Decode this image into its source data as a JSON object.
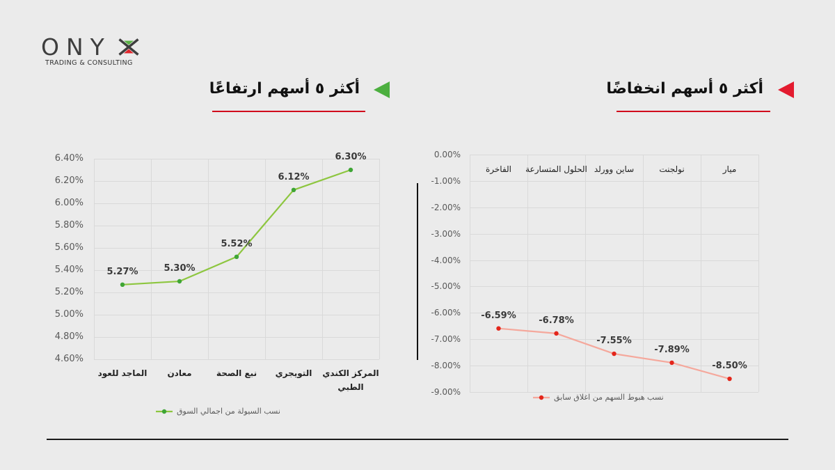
{
  "logo": {
    "name": "ONYX",
    "tagline": "TRADING & CONSULTING",
    "colors": {
      "text": "#3e3e3e",
      "green": "#5bb246",
      "red": "#e1252b"
    }
  },
  "sections": {
    "gainers": {
      "title": "أكثر ٥ أسهم ارتفاعًا",
      "accent_icon": "triangle-left-icon",
      "accent_color": "#4caf3f",
      "underline_color": "#d0021b"
    },
    "losers": {
      "title": "أكثر ٥ أسهم انخفاضًا",
      "accent_icon": "triangle-left-icon",
      "accent_color": "#e31b2f",
      "underline_color": "#d0021b"
    }
  },
  "chart_data": [
    {
      "type": "line",
      "categories": [
        "الماجد للعود",
        "معادن",
        "نبع الصحة",
        "التويجري",
        "المركز الكندي الطبي"
      ],
      "series": [
        {
          "name": "نسب السيولة من اجمالي السوق",
          "values": [
            5.27,
            5.3,
            5.52,
            6.12,
            6.3
          ],
          "color": "#8dc63f",
          "marker_color": "#3fa535"
        }
      ],
      "yticks": [
        "6.40%",
        "6.20%",
        "6.00%",
        "5.80%",
        "5.60%",
        "5.40%",
        "5.20%",
        "5.00%",
        "4.80%",
        "4.60%"
      ],
      "ylim": [
        4.6,
        6.4
      ],
      "unit": "%",
      "data_labels": true,
      "category_axis": "bottom",
      "grid": true,
      "legend": "bottom"
    },
    {
      "type": "line",
      "categories": [
        "الفاخرة",
        "الحلول المتسارعة",
        "ساين وورلد",
        "نولجنت",
        "ميار"
      ],
      "series": [
        {
          "name": "نسب هبوط السهم من اغلاق سابق",
          "values": [
            -6.59,
            -6.78,
            -7.55,
            -7.89,
            -8.5
          ],
          "color": "#f5a89c",
          "marker_color": "#e3261b"
        }
      ],
      "yticks": [
        "0.00%",
        "-1.00%",
        "-2.00%",
        "-3.00%",
        "-4.00%",
        "-5.00%",
        "-6.00%",
        "-7.00%",
        "-8.00%",
        "-9.00%"
      ],
      "ylim": [
        -9,
        0
      ],
      "unit": "%",
      "data_labels": true,
      "category_axis": "top",
      "grid": true,
      "legend": "bottom"
    }
  ]
}
